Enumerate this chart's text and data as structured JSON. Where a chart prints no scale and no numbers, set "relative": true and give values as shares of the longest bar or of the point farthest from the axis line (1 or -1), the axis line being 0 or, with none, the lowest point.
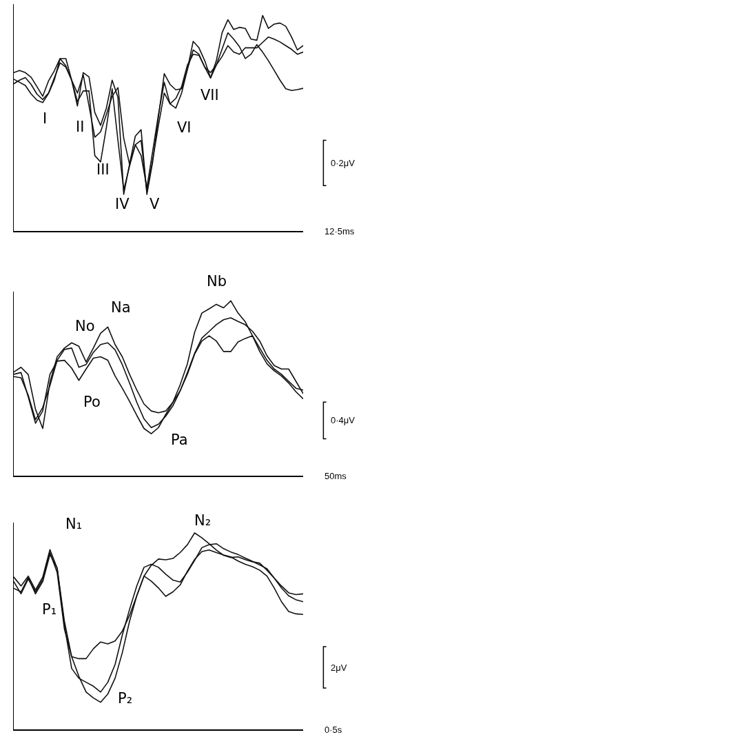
{
  "chart_data": [
    {
      "type": "line",
      "relative": true,
      "categories": [
        null,
        null,
        null,
        null,
        null,
        null,
        null,
        null,
        null,
        null,
        null,
        null,
        null,
        null,
        null,
        null,
        null,
        null,
        null,
        null,
        null,
        null,
        null,
        null,
        null,
        null,
        null,
        null,
        null,
        null,
        null,
        null,
        null,
        null,
        null,
        null,
        null,
        null,
        null,
        null,
        null,
        null,
        null,
        null,
        null,
        null,
        null,
        null,
        null,
        null,
        null
      ],
      "series": [
        {
          "color": "#111111",
          "values": [
            0.735,
            0.745,
            0.735,
            0.713,
            0.67,
            0.625,
            0.696,
            0.743,
            0.8,
            0.8,
            0.7,
            0.58,
            0.735,
            0.715,
            0.55,
            0.49,
            0.57,
            0.7,
            0.62,
            0.17,
            0.31,
            0.44,
            0.47,
            0.17,
            0.32,
            0.53,
            0.73,
            0.68,
            0.655,
            0.66,
            0.75,
            0.88,
            0.85,
            0.79,
            0.71,
            0.79,
            0.92,
            0.98,
            0.935,
            0.945,
            0.94,
            0.89,
            0.885,
            1,
            0.94,
            0.96,
            0.965,
            0.95,
            0.9,
            0.84,
            0.86
          ]
        },
        {
          "color": "#111111",
          "values": [
            0.704,
            0.69,
            0.675,
            0.636,
            0.607,
            0.596,
            0.638,
            0.7,
            0.8,
            0.766,
            0.7,
            0.6,
            0.65,
            0.65,
            0.35,
            0.32,
            0.48,
            0.66,
            0.42,
            0.19,
            0.3,
            0.4,
            0.42,
            0.18,
            0.33,
            0.49,
            0.64,
            0.59,
            0.57,
            0.64,
            0.75,
            0.84,
            0.82,
            0.76,
            0.71,
            0.77,
            0.845,
            0.92,
            0.89,
            0.855,
            0.8,
            0.82,
            0.865,
            0.83,
            0.79,
            0.745,
            0.7,
            0.66,
            0.652,
            0.656,
            0.662
          ]
        },
        {
          "color": "#111111",
          "values": [
            0.683,
            0.7,
            0.712,
            0.68,
            0.635,
            0.61,
            0.64,
            0.71,
            0.78,
            0.76,
            0.7,
            0.64,
            0.725,
            0.58,
            0.435,
            0.46,
            0.54,
            0.625,
            0.665,
            0.43,
            0.31,
            0.4,
            0.35,
            0.2,
            0.37,
            0.54,
            0.69,
            0.59,
            0.615,
            0.67,
            0.77,
            0.82,
            0.815,
            0.76,
            0.735,
            0.77,
            0.81,
            0.86,
            0.83,
            0.82,
            0.85,
            0.85,
            0.85,
            0.875,
            0.9,
            0.89,
            0.877,
            0.86,
            0.843,
            0.82,
            0.83
          ]
        }
      ],
      "annotations": [
        "I",
        "II",
        "III",
        "IV",
        "V",
        "VI",
        "VII",
        "12·5ms",
        "0·2μV"
      ]
    },
    {
      "type": "line",
      "relative": true,
      "categories": [
        null,
        null,
        null,
        null,
        null,
        null,
        null,
        null,
        null,
        null,
        null,
        null,
        null,
        null,
        null,
        null,
        null,
        null,
        null,
        null,
        null,
        null,
        null,
        null,
        null,
        null,
        null,
        null,
        null,
        null,
        null,
        null,
        null,
        null,
        null,
        null,
        null,
        null,
        null,
        null,
        null
      ],
      "series": [
        {
          "color": "#111111",
          "values": [
            0.593,
            0.62,
            0.578,
            0.38,
            0.27,
            0.535,
            0.68,
            0.73,
            0.76,
            0.74,
            0.65,
            0.73,
            0.815,
            0.85,
            0.75,
            0.68,
            0.58,
            0.49,
            0.41,
            0.37,
            0.36,
            0.37,
            0.42,
            0.52,
            0.64,
            0.82,
            0.93,
            0.954,
            0.98,
            0.96,
            1,
            0.93,
            0.88,
            0.8,
            0.73,
            0.66,
            0.61,
            0.58,
            0.54,
            0.5,
            0.49
          ]
        },
        {
          "color": "#111111",
          "values": [
            0.58,
            0.59,
            0.45,
            0.3,
            0.37,
            0.58,
            0.655,
            0.66,
            0.615,
            0.545,
            0.61,
            0.672,
            0.68,
            0.66,
            0.57,
            0.5,
            0.425,
            0.345,
            0.27,
            0.24,
            0.275,
            0.35,
            0.42,
            0.486,
            0.58,
            0.695,
            0.77,
            0.8,
            0.77,
            0.71,
            0.71,
            0.765,
            0.785,
            0.8,
            0.71,
            0.64,
            0.6,
            0.57,
            0.53,
            0.48,
            0.44
          ]
        },
        {
          "color": "#111111",
          "values": [
            0.567,
            0.56,
            0.46,
            0.32,
            0.39,
            0.515,
            0.66,
            0.722,
            0.73,
            0.62,
            0.636,
            0.705,
            0.75,
            0.76,
            0.72,
            0.635,
            0.53,
            0.42,
            0.325,
            0.275,
            0.295,
            0.34,
            0.4,
            0.485,
            0.59,
            0.7,
            0.787,
            0.825,
            0.864,
            0.892,
            0.903,
            0.882,
            0.863,
            0.826,
            0.77,
            0.686,
            0.63,
            0.61,
            0.61,
            0.54,
            0.47
          ]
        }
      ],
      "annotations": [
        "No",
        "Po",
        "Na",
        "Nb",
        "Pa",
        "50ms",
        "0·4μV"
      ]
    },
    {
      "type": "line",
      "relative": true,
      "categories": [
        null,
        null,
        null,
        null,
        null,
        null,
        null,
        null,
        null,
        null,
        null,
        null,
        null,
        null,
        null,
        null,
        null,
        null,
        null,
        null,
        null,
        null,
        null,
        null,
        null,
        null,
        null,
        null,
        null,
        null,
        null,
        null,
        null,
        null,
        null,
        null,
        null,
        null,
        null,
        null,
        null
      ],
      "series": [
        {
          "color": "#111111",
          "values": [
            0.775,
            0.73,
            0.78,
            0.71,
            0.775,
            0.915,
            0.82,
            0.55,
            0.37,
            0.27,
            0.19,
            0.16,
            0.138,
            0.18,
            0.26,
            0.39,
            0.55,
            0.68,
            0.78,
            0.835,
            0.867,
            0.863,
            0.87,
            0.9,
            0.94,
            1,
            0.975,
            0.945,
            0.913,
            0.886,
            0.875,
            0.878,
            0.864,
            0.853,
            0.846,
            0.81,
            0.77,
            0.73,
            0.695,
            0.686,
            0.69
          ]
        },
        {
          "color": "#111111",
          "values": [
            0.752,
            0.69,
            0.765,
            0.7,
            0.763,
            0.9,
            0.798,
            0.51,
            0.37,
            0.36,
            0.36,
            0.41,
            0.445,
            0.435,
            0.45,
            0.5,
            0.58,
            0.68,
            0.78,
            0.755,
            0.72,
            0.677,
            0.7,
            0.735,
            0.805,
            0.865,
            0.905,
            0.913,
            0.9,
            0.888,
            0.878,
            0.857,
            0.84,
            0.828,
            0.81,
            0.78,
            0.72,
            0.65,
            0.6,
            0.588,
            0.585
          ]
        },
        {
          "color": "#111111",
          "values": [
            0.718,
            0.7,
            0.772,
            0.69,
            0.752,
            0.89,
            0.821,
            0.53,
            0.31,
            0.26,
            0.24,
            0.22,
            0.19,
            0.24,
            0.33,
            0.48,
            0.61,
            0.73,
            0.825,
            0.84,
            0.825,
            0.79,
            0.76,
            0.75,
            0.8,
            0.86,
            0.925,
            0.94,
            0.945,
            0.92,
            0.903,
            0.89,
            0.872,
            0.855,
            0.837,
            0.818,
            0.77,
            0.72,
            0.68,
            0.66,
            0.65
          ]
        }
      ],
      "annotations": [
        "N₁",
        "P₁",
        "N₂",
        "P₂",
        "0·5s",
        "2μV"
      ]
    }
  ]
}
